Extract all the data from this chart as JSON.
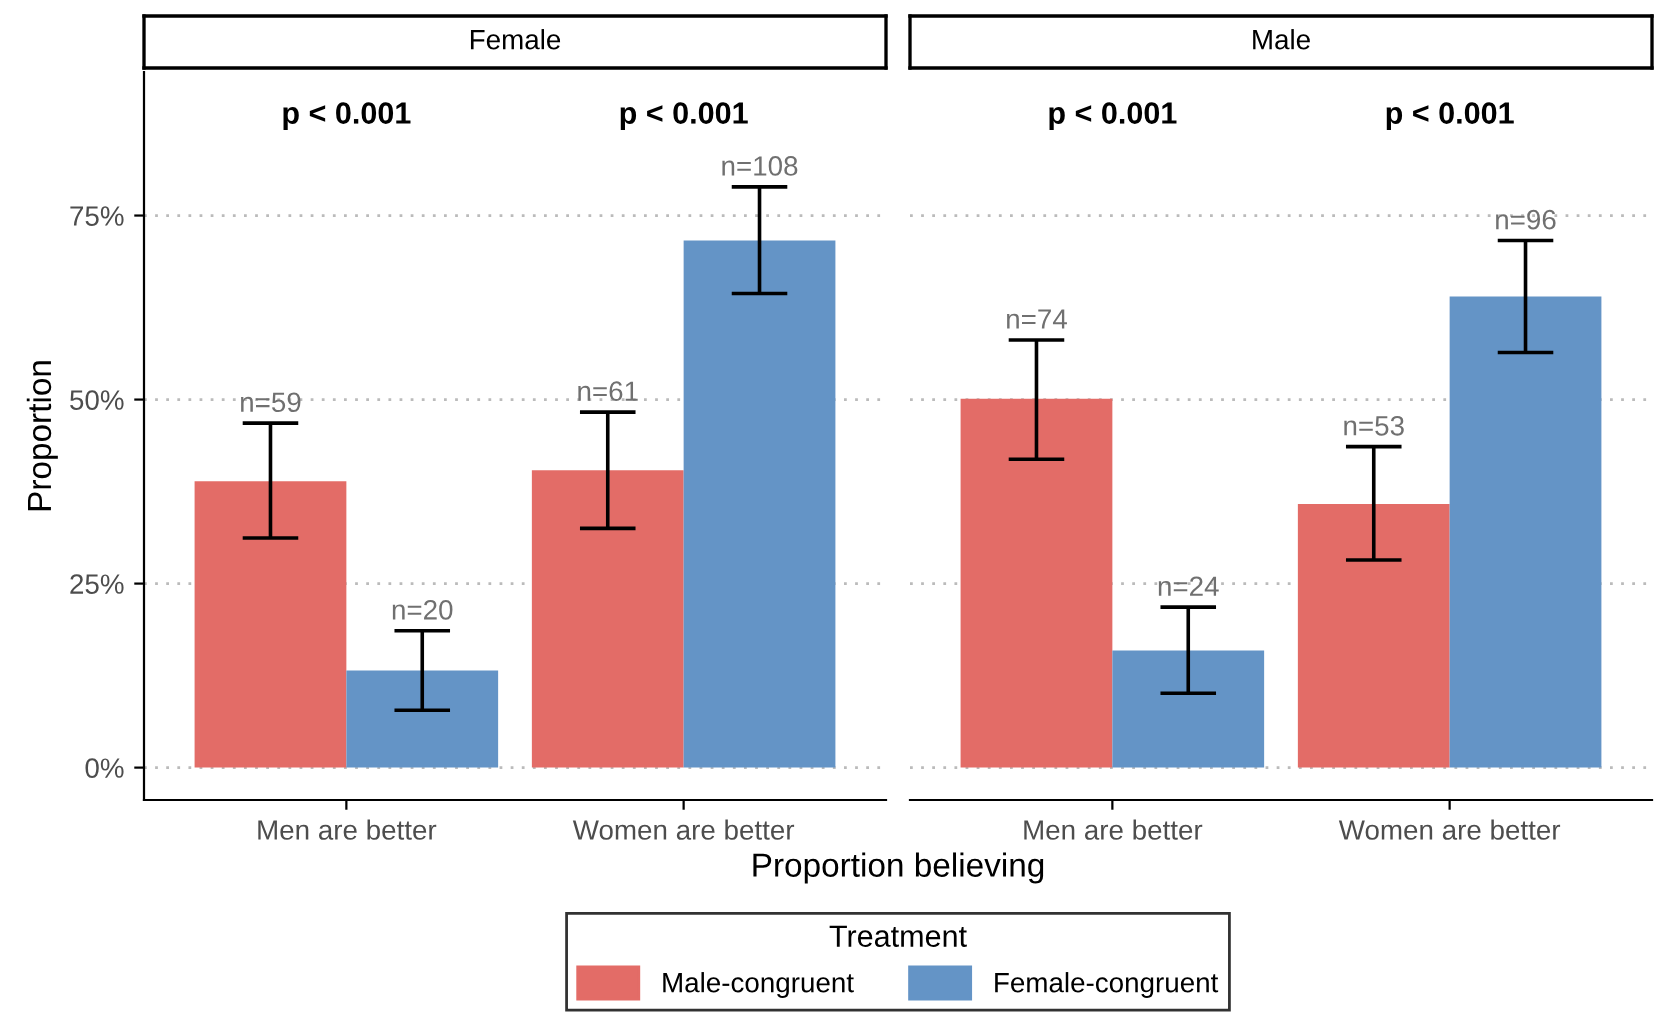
{
  "chart_data": [
    {
      "type": "bar",
      "title": "Female",
      "ylabel": "Proportion",
      "xlabel": "Proportion believing",
      "legend_title": "Treatment",
      "legend": "bottom",
      "grid": "y",
      "categories": [
        "Men are better",
        "Women are better"
      ],
      "ylim": [
        -4.4,
        94.5
      ],
      "yticks": [
        {
          "value": 0,
          "label": "0%"
        },
        {
          "value": 25,
          "label": "25%"
        },
        {
          "value": 50,
          "label": "50%"
        },
        {
          "value": 75,
          "label": "75%"
        }
      ],
      "series": [
        {
          "name": "Male-congruent",
          "color": "#e36c67",
          "values": [
            38.9,
            40.4
          ],
          "errors": [
            [
              31.2,
              46.8
            ],
            [
              32.5,
              48.3
            ]
          ]
        },
        {
          "name": "Female-congruent",
          "color": "#6494c6",
          "values": [
            13.2,
            71.6
          ],
          "errors": [
            [
              7.8,
              18.6
            ],
            [
              64.4,
              78.9
            ]
          ]
        }
      ],
      "annotations": [
        "p < 0.001",
        "p < 0.001",
        "n=59",
        "n=61",
        "n=20",
        "n=108"
      ]
    },
    {
      "type": "bar",
      "title": "Male",
      "grid": "y",
      "tick_labels": "x",
      "categories": [
        "Men are better",
        "Women are better"
      ],
      "ylim": [
        -4.4,
        94.5
      ],
      "yticks": [
        0,
        25,
        50,
        75
      ],
      "series": [
        {
          "color": "#e36c67",
          "values": [
            50.1,
            35.8
          ],
          "errors": [
            [
              41.9,
              58.1
            ],
            [
              28.2,
              43.6
            ]
          ]
        },
        {
          "color": "#6494c6",
          "values": [
            15.9,
            64.0
          ],
          "errors": [
            [
              10.1,
              21.8
            ],
            [
              56.4,
              71.6
            ]
          ]
        }
      ],
      "annotations": [
        "p < 0.001",
        "p < 0.001",
        "n=74",
        "n=53",
        "n=24",
        "n=96"
      ]
    }
  ]
}
